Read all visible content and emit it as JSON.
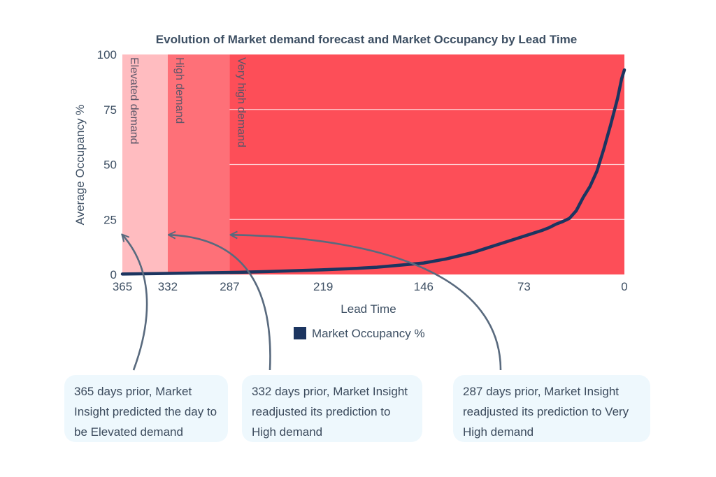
{
  "chart_data": {
    "type": "line",
    "title": "Evolution of Market demand forecast and Market Occupancy by Lead Time",
    "xlabel": "Lead Time",
    "ylabel": "Average Occupancy %",
    "xlim": [
      365,
      0
    ],
    "ylim": [
      0,
      100
    ],
    "x_ticks": [
      "365",
      "332",
      "287",
      "219",
      "146",
      "73",
      "0"
    ],
    "x_tick_values": [
      365,
      332,
      287,
      219,
      146,
      73,
      0
    ],
    "y_ticks": [
      "0",
      "25",
      "50",
      "75",
      "100"
    ],
    "y_tick_values": [
      0,
      25,
      50,
      75,
      100
    ],
    "grid": true,
    "legend_position": "bottom",
    "regions": [
      {
        "label": "Elevated demand",
        "from": 365,
        "to": 332,
        "color": "#ffbcc0"
      },
      {
        "label": "High demand",
        "from": 332,
        "to": 287,
        "color": "#fe7078"
      },
      {
        "label": "Very high demand",
        "from": 287,
        "to": 0,
        "color": "#fd4e58"
      }
    ],
    "series": [
      {
        "name": "Market Occupancy %",
        "color": "#1c3560",
        "x": [
          365,
          340,
          320,
          300,
          280,
          260,
          240,
          220,
          200,
          180,
          160,
          146,
          130,
          110,
          100,
          90,
          80,
          70,
          60,
          55,
          50,
          45,
          40,
          35,
          30,
          25,
          20,
          15,
          10,
          5,
          2,
          0
        ],
        "y": [
          0.2,
          0.4,
          0.6,
          0.8,
          1.0,
          1.3,
          1.7,
          2.1,
          2.6,
          3.3,
          4.4,
          5.2,
          7.0,
          10.0,
          12.0,
          14.0,
          16.0,
          18.0,
          20.0,
          21.2,
          22.8,
          24.0,
          25.5,
          29.0,
          35.0,
          40.0,
          47.0,
          57.0,
          68.0,
          80.0,
          89.0,
          93.0
        ]
      }
    ]
  },
  "callouts": [
    {
      "text": "365 days prior, Market Insight predicted the day to be Elevated demand",
      "x": 365
    },
    {
      "text": "332 days prior, Market Insight readjusted its prediction to High demand",
      "x": 332
    },
    {
      "text": "287 days prior, Market Insight readjusted its prediction to Very High demand",
      "x": 287
    }
  ]
}
